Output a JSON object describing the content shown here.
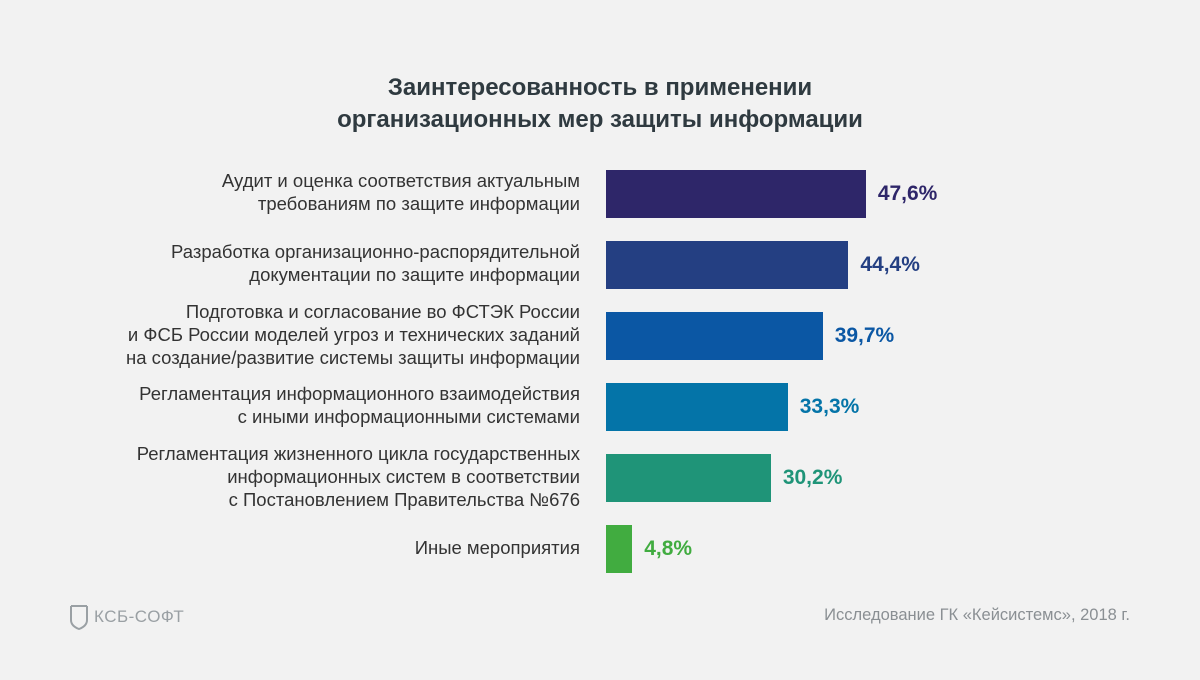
{
  "chart_data": {
    "type": "bar",
    "orientation": "horizontal",
    "title": [
      "Заинтересованность в применении",
      "организационных мер защиты информации"
    ],
    "categories": [
      [
        "Аудит и оценка соответствия актуальным",
        "требованиям по защите информации"
      ],
      [
        "Разработка организационно-распорядительной",
        "документации по защите информации"
      ],
      [
        "Подготовка и согласование во ФСТЭК России",
        "и ФСБ России моделей угроз и технических заданий",
        "на создание/развитие системы защиты информации"
      ],
      [
        "Регламентация информационного взаимодействия",
        "с иными информационными системами"
      ],
      [
        "Регламентация жизненного цикла государственных",
        "информационных систем в соответствии",
        "с Постановлением Правительства №676"
      ],
      [
        "Иные мероприятия"
      ]
    ],
    "values": [
      47.6,
      44.4,
      39.7,
      33.3,
      30.2,
      4.8
    ],
    "value_labels": [
      "47,6%",
      "44,4%",
      "39,7%",
      "33,3%",
      "30,2%",
      "4,8%"
    ],
    "colors": [
      "#2e2669",
      "#243f82",
      "#0b57a4",
      "#0474a8",
      "#1f9478",
      "#41ac40"
    ],
    "xlim": [
      0,
      48
    ],
    "grid": false,
    "legend": "none"
  },
  "footer": {
    "logo_text": "КСБ-СОФТ",
    "source": "Исследование ГК «Кейсистемс», 2018 г."
  },
  "icons": {
    "logo": "shield-logo-icon"
  }
}
